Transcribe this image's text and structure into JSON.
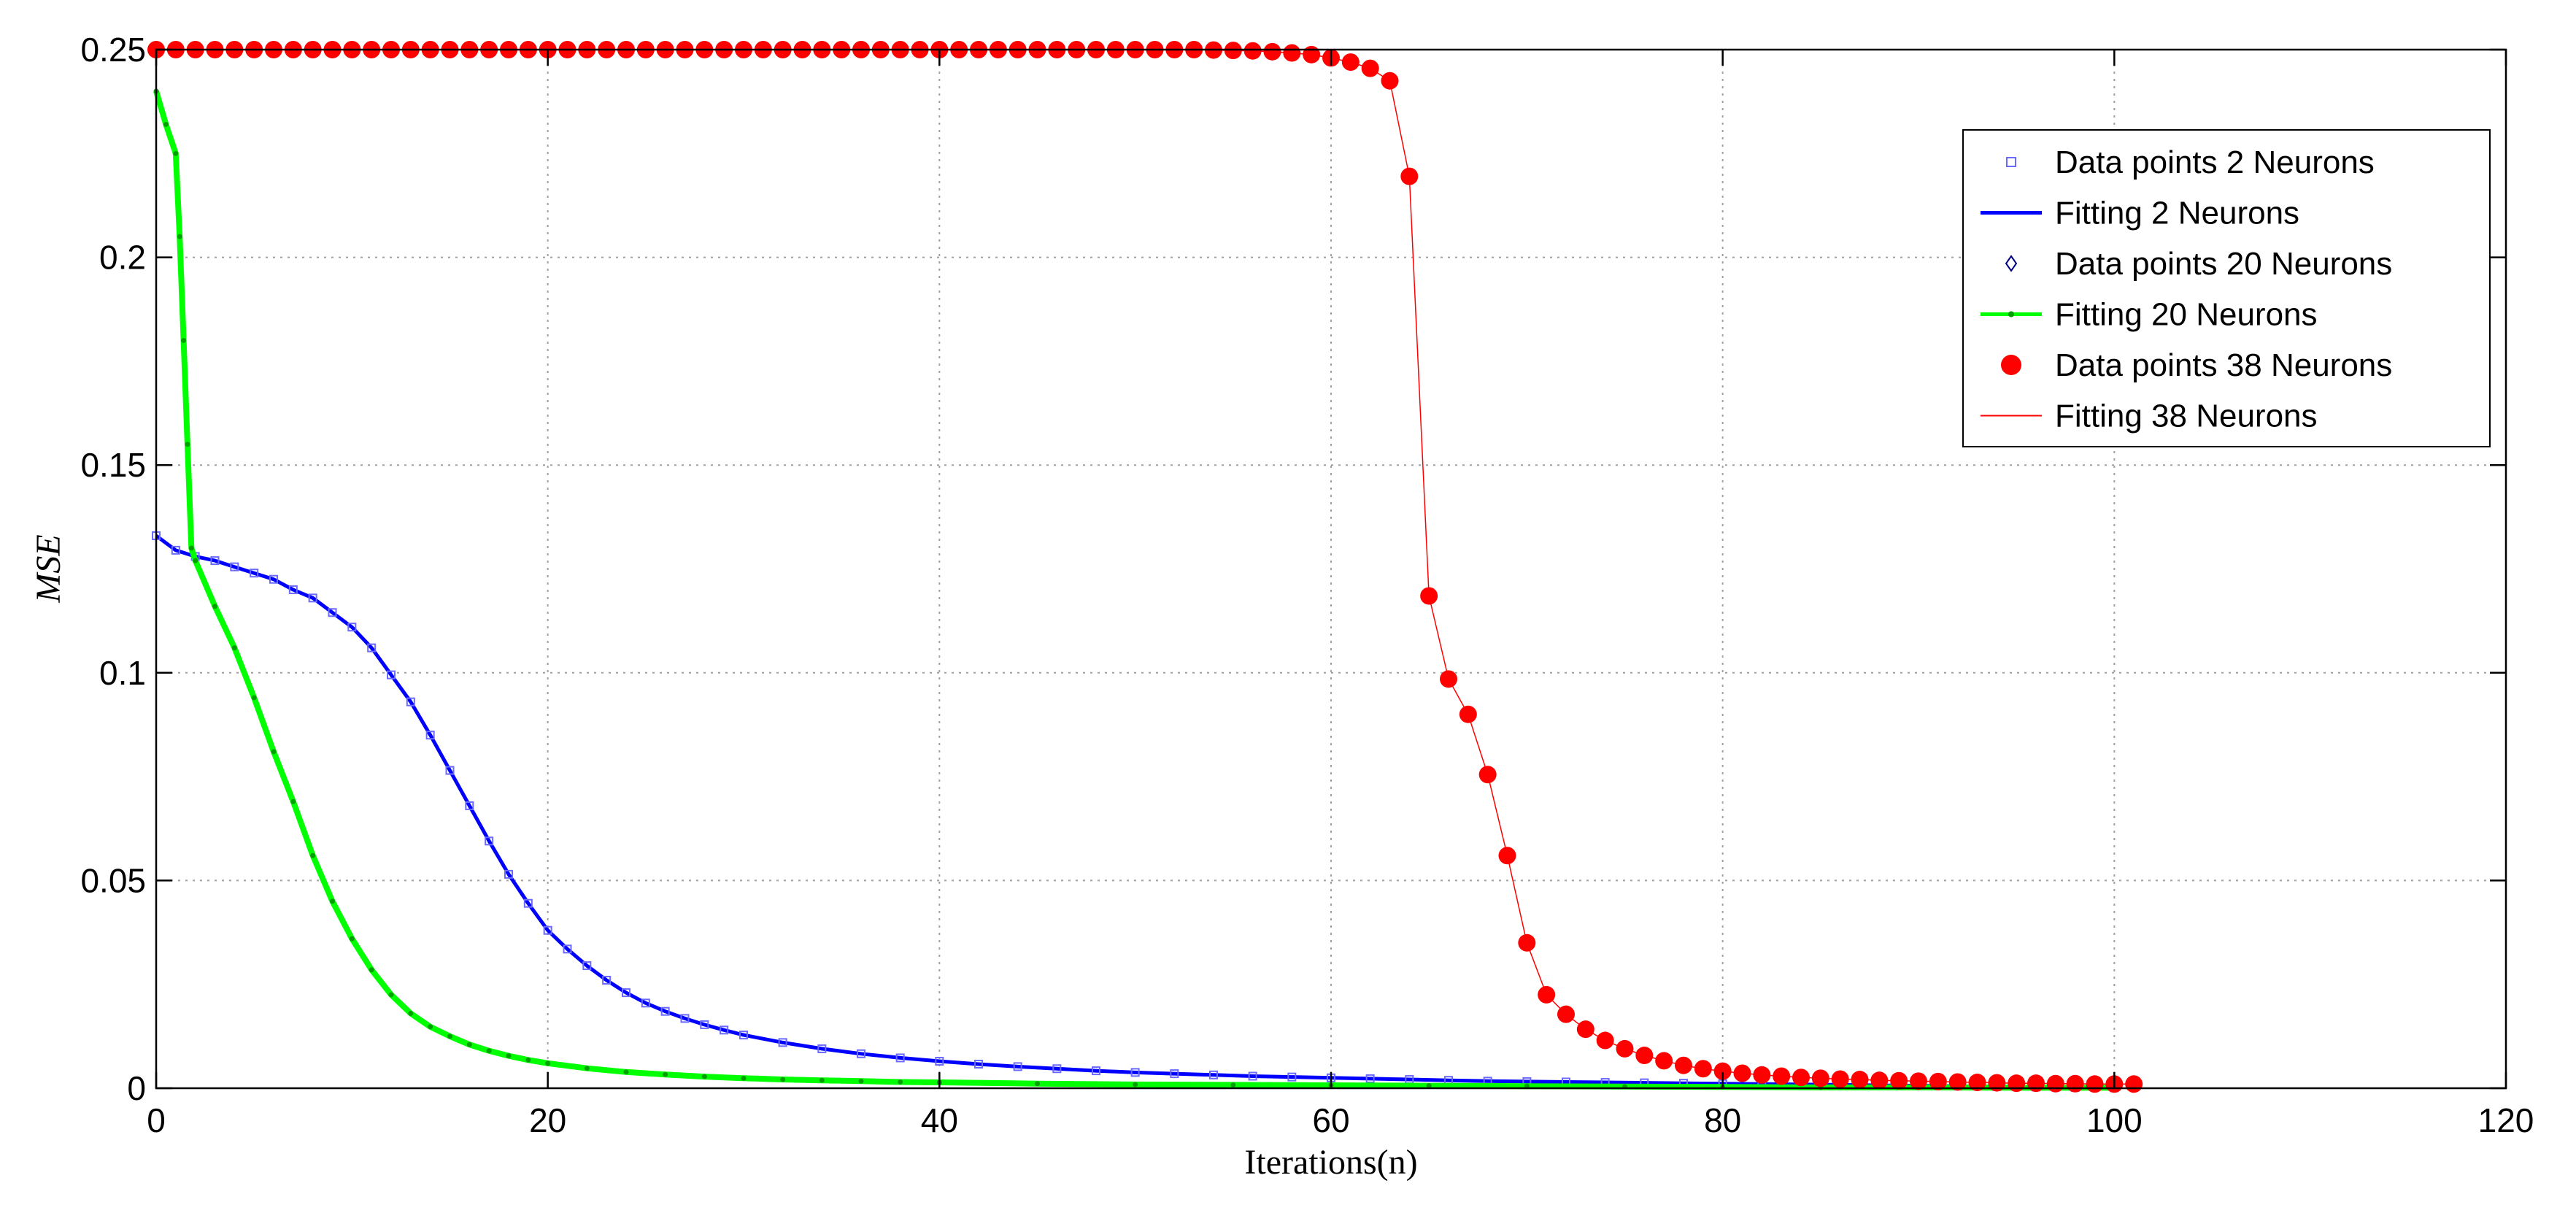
{
  "chart_data": {
    "type": "line",
    "title": "",
    "xlabel": "Iterations(n)",
    "ylabel": "MSE",
    "xlim": [
      0,
      120
    ],
    "ylim": [
      0,
      0.25
    ],
    "xticks": [
      0,
      20,
      40,
      60,
      80,
      100,
      120
    ],
    "yticks": [
      0,
      0.05,
      0.1,
      0.15,
      0.2,
      0.25
    ],
    "xtick_labels": [
      "0",
      "20",
      "40",
      "60",
      "80",
      "100",
      "120"
    ],
    "ytick_labels": [
      "0",
      "0.05",
      "0.1",
      "0.15",
      "0.2",
      "0.25"
    ],
    "grid": true,
    "legend_position": "top-right",
    "legend": [
      {
        "label": "Data points 2 Neurons",
        "color": "#0000ff",
        "kind": "marker",
        "marker": "square"
      },
      {
        "label": "Fitting 2 Neurons",
        "color": "#0000ff",
        "kind": "line"
      },
      {
        "label": "Data points 20 Neurons",
        "color": "#000080",
        "kind": "marker",
        "marker": "diamond"
      },
      {
        "label": "Fitting 20 Neurons",
        "color": "#00ff00",
        "kind": "line-marker"
      },
      {
        "label": "Data points 38 Neurons",
        "color": "#ff0000",
        "kind": "marker",
        "marker": "circle"
      },
      {
        "label": "Fitting 38 Neurons",
        "color": "#ff0000",
        "kind": "line"
      }
    ],
    "series": [
      {
        "name": "2 Neurons",
        "color": "#0000ff",
        "marker": "square",
        "x": [
          0,
          1,
          2,
          3,
          4,
          5,
          6,
          7,
          8,
          9,
          10,
          11,
          12,
          13,
          14,
          15,
          16,
          17,
          18,
          19,
          20,
          21,
          22,
          23,
          24,
          25,
          26,
          27,
          28,
          29,
          30,
          32,
          34,
          36,
          38,
          40,
          42,
          44,
          46,
          48,
          50,
          52,
          54,
          56,
          58,
          60,
          62,
          64,
          66,
          68,
          70,
          72,
          74,
          76,
          78,
          80,
          82,
          84,
          86,
          88,
          90,
          92,
          94,
          96,
          98,
          100
        ],
        "values": [
          0.133,
          0.1295,
          0.128,
          0.127,
          0.1255,
          0.124,
          0.1225,
          0.12,
          0.118,
          0.1145,
          0.111,
          0.106,
          0.0995,
          0.093,
          0.085,
          0.0765,
          0.068,
          0.0595,
          0.0515,
          0.0445,
          0.038,
          0.0335,
          0.0295,
          0.026,
          0.023,
          0.0205,
          0.0185,
          0.0168,
          0.0153,
          0.014,
          0.0128,
          0.011,
          0.0095,
          0.0083,
          0.0073,
          0.0065,
          0.0058,
          0.0052,
          0.0047,
          0.0042,
          0.0038,
          0.0035,
          0.0032,
          0.0029,
          0.0027,
          0.0025,
          0.0023,
          0.0021,
          0.0019,
          0.0017,
          0.0016,
          0.0015,
          0.0014,
          0.0013,
          0.0012,
          0.0011,
          0.001,
          0.0009,
          0.0008,
          0.0007,
          0.0006,
          0.0005,
          0.0004,
          0.0003,
          0.0002,
          0.0001
        ]
      },
      {
        "name": "20 Neurons",
        "color": "#00ff00",
        "marker": "diamond",
        "x": [
          0,
          0.5,
          1,
          1.2,
          1.4,
          1.6,
          1.8,
          2,
          3,
          4,
          5,
          6,
          7,
          8,
          9,
          10,
          11,
          12,
          13,
          14,
          15,
          16,
          17,
          18,
          19,
          20,
          22,
          24,
          26,
          28,
          30,
          32,
          34,
          36,
          38,
          40,
          45,
          50,
          55,
          60,
          65,
          70,
          75,
          80,
          85,
          90,
          95,
          100
        ],
        "values": [
          0.24,
          0.232,
          0.225,
          0.205,
          0.18,
          0.155,
          0.13,
          0.127,
          0.116,
          0.106,
          0.094,
          0.081,
          0.069,
          0.056,
          0.045,
          0.036,
          0.0285,
          0.0225,
          0.018,
          0.0148,
          0.0125,
          0.0105,
          0.009,
          0.0078,
          0.0068,
          0.006,
          0.0048,
          0.0039,
          0.0033,
          0.0028,
          0.0024,
          0.0021,
          0.0019,
          0.0017,
          0.0015,
          0.0014,
          0.0011,
          0.0009,
          0.0008,
          0.0007,
          0.0006,
          0.0005,
          0.0004,
          0.0003,
          0.0002,
          0.0002,
          0.0001,
          0.0001
        ]
      },
      {
        "name": "38 Neurons",
        "color": "#ff0000",
        "marker": "circle",
        "x": [
          0,
          1,
          2,
          3,
          4,
          5,
          6,
          7,
          8,
          9,
          10,
          11,
          12,
          13,
          14,
          15,
          16,
          17,
          18,
          19,
          20,
          21,
          22,
          23,
          24,
          25,
          26,
          27,
          28,
          29,
          30,
          31,
          32,
          33,
          34,
          35,
          36,
          37,
          38,
          39,
          40,
          41,
          42,
          43,
          44,
          45,
          46,
          47,
          48,
          49,
          50,
          51,
          52,
          53,
          54,
          55,
          56,
          57,
          58,
          59,
          60,
          61,
          62,
          63,
          64,
          65,
          66,
          67,
          68,
          69,
          70,
          71,
          72,
          73,
          74,
          75,
          76,
          77,
          78,
          79,
          80,
          81,
          82,
          83,
          84,
          85,
          86,
          87,
          88,
          89,
          90,
          91,
          92,
          93,
          94,
          95,
          96,
          97,
          98,
          99,
          100,
          101
        ],
        "values": [
          0.25,
          0.25,
          0.25,
          0.25,
          0.25,
          0.25,
          0.25,
          0.25,
          0.25,
          0.25,
          0.25,
          0.25,
          0.25,
          0.25,
          0.25,
          0.25,
          0.25,
          0.25,
          0.25,
          0.25,
          0.25,
          0.25,
          0.25,
          0.25,
          0.25,
          0.25,
          0.25,
          0.25,
          0.25,
          0.25,
          0.25,
          0.25,
          0.25,
          0.25,
          0.25,
          0.25,
          0.25,
          0.25,
          0.25,
          0.25,
          0.25,
          0.25,
          0.25,
          0.25,
          0.25,
          0.25,
          0.25,
          0.25,
          0.25,
          0.25,
          0.25,
          0.25,
          0.25,
          0.25,
          0.2499,
          0.2498,
          0.2497,
          0.2495,
          0.2492,
          0.2488,
          0.248,
          0.247,
          0.2455,
          0.2425,
          0.2195,
          0.1185,
          0.0985,
          0.09,
          0.0755,
          0.056,
          0.035,
          0.0225,
          0.0178,
          0.0142,
          0.0115,
          0.0095,
          0.0079,
          0.0066,
          0.0055,
          0.0047,
          0.0041,
          0.0036,
          0.0032,
          0.0029,
          0.0026,
          0.0024,
          0.0022,
          0.0021,
          0.0019,
          0.0018,
          0.0017,
          0.0016,
          0.0015,
          0.0014,
          0.0013,
          0.0012,
          0.0012,
          0.0011,
          0.0011,
          0.001,
          0.001,
          0.001
        ]
      }
    ]
  }
}
